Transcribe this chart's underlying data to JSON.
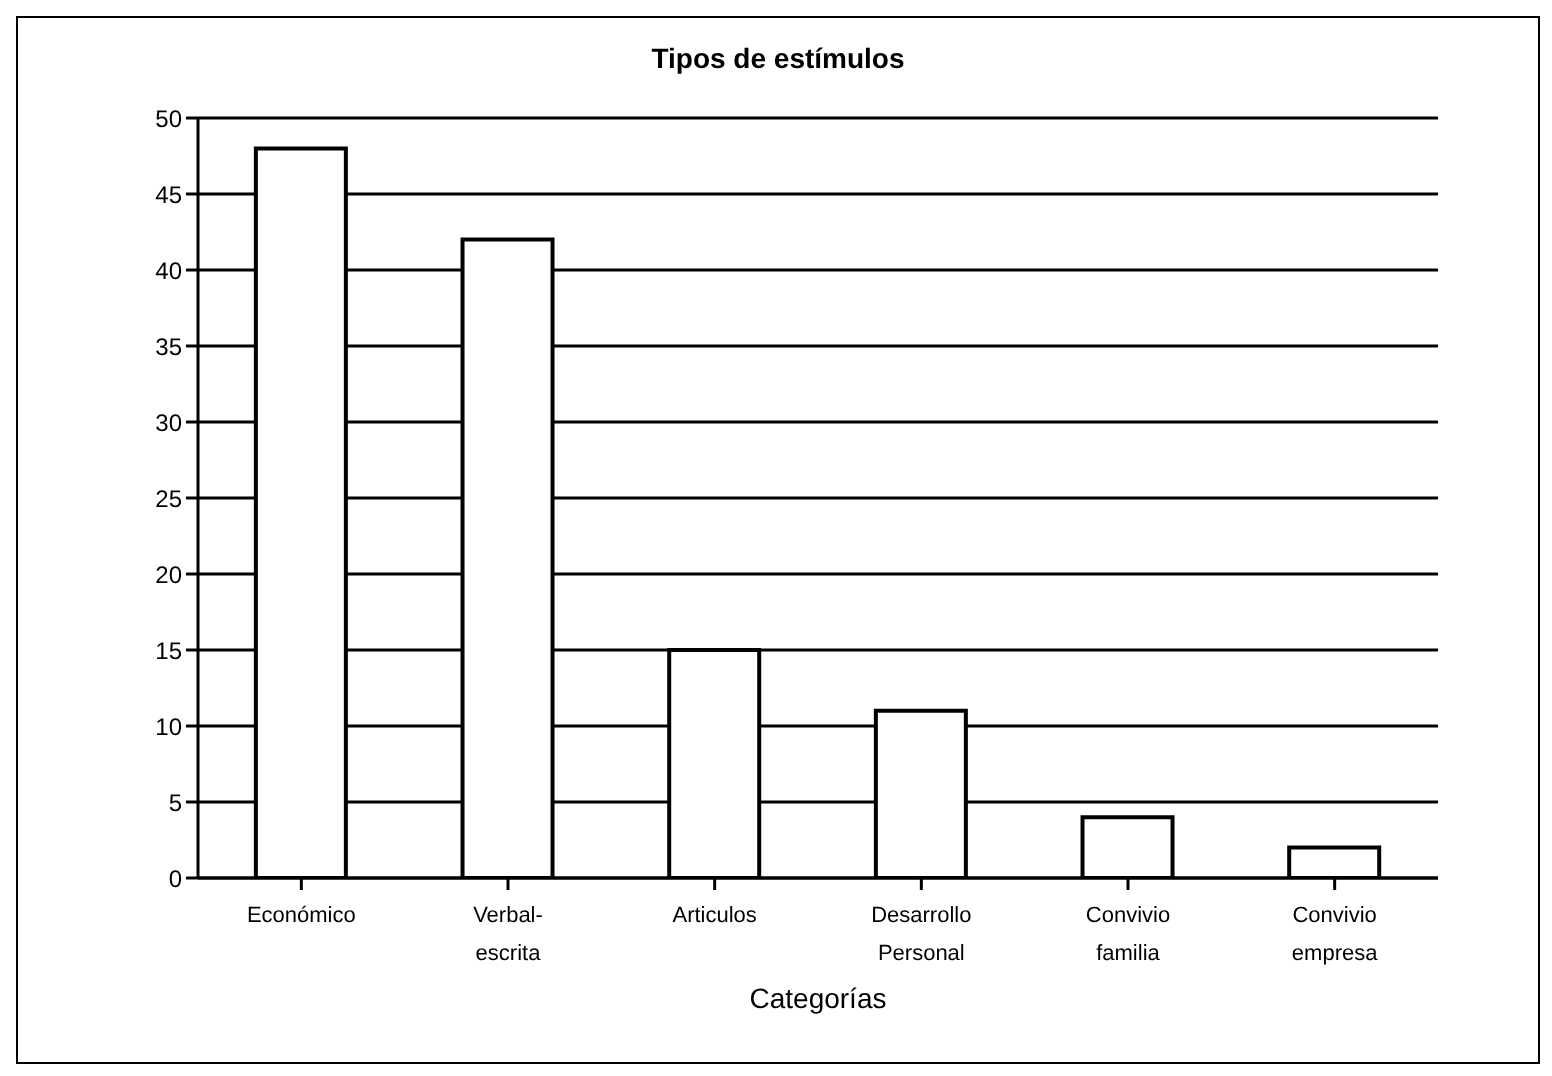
{
  "chart_data": {
    "type": "bar",
    "title": "Tipos de estímulos",
    "xlabel": "Categorías",
    "categories": [
      "Económico",
      "Verbal-escrita",
      "Articulos",
      "Desarrollo Personal",
      "Convivio familia",
      "Convivio empresa"
    ],
    "values": [
      48,
      42,
      15,
      11,
      4,
      2
    ],
    "color": "#ffffff",
    "ylim": [
      0,
      50
    ],
    "yticks": [
      0,
      5,
      10,
      15,
      20,
      25,
      30,
      35,
      40,
      45,
      50
    ],
    "grid": "y"
  }
}
